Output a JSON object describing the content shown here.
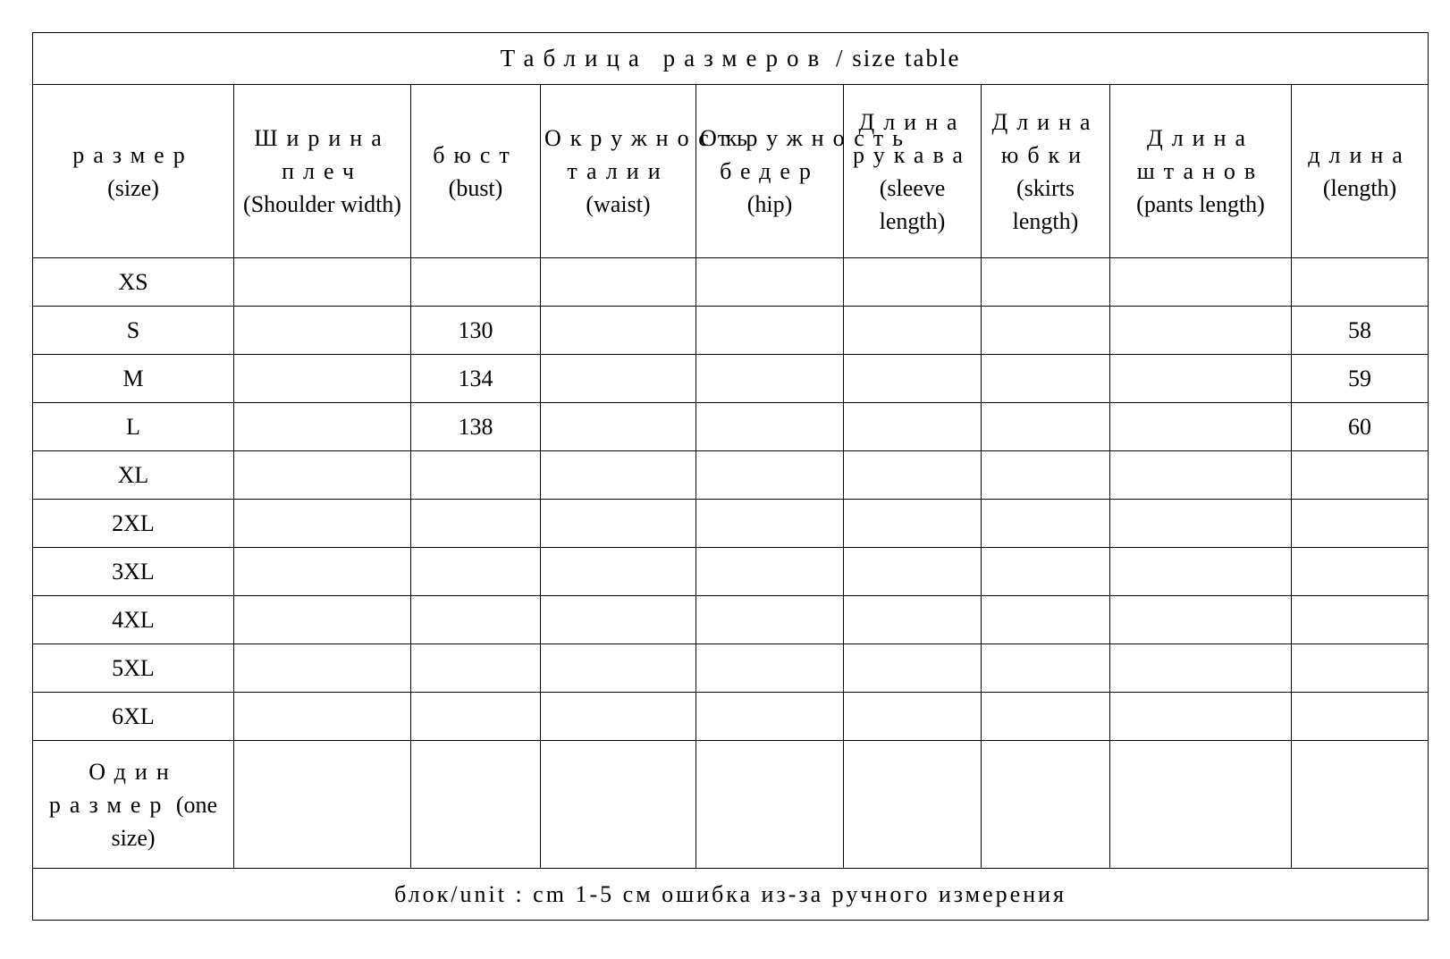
{
  "title": {
    "ru": "Таблица размеров",
    "sep": " / ",
    "en": "size table"
  },
  "columns": [
    {
      "ru": "размер",
      "en": "(size)"
    },
    {
      "ru": "Ширина плеч",
      "en": "(Shoulder width)"
    },
    {
      "ru": "бюст",
      "en": "(bust)"
    },
    {
      "ru": "Окружность талии",
      "en": "(waist)"
    },
    {
      "ru": "Окружность бедер",
      "en": "(hip)"
    },
    {
      "ru": "Длина рукава",
      "en": "(sleeve length)"
    },
    {
      "ru": "Длина юбки",
      "en": "(skirts length)"
    },
    {
      "ru": "Длина штанов",
      "en": "(pants length)"
    },
    {
      "ru": "длина",
      "en": "(length)"
    }
  ],
  "rows": [
    [
      "XS",
      "",
      "",
      "",
      "",
      "",
      "",
      "",
      ""
    ],
    [
      "S",
      "",
      "130",
      "",
      "",
      "",
      "",
      "",
      "58"
    ],
    [
      "M",
      "",
      "134",
      "",
      "",
      "",
      "",
      "",
      "59"
    ],
    [
      "L",
      "",
      "138",
      "",
      "",
      "",
      "",
      "",
      "60"
    ],
    [
      "XL",
      "",
      "",
      "",
      "",
      "",
      "",
      "",
      ""
    ],
    [
      "2XL",
      "",
      "",
      "",
      "",
      "",
      "",
      "",
      ""
    ],
    [
      "3XL",
      "",
      "",
      "",
      "",
      "",
      "",
      "",
      ""
    ],
    [
      "4XL",
      "",
      "",
      "",
      "",
      "",
      "",
      "",
      ""
    ],
    [
      "5XL",
      "",
      "",
      "",
      "",
      "",
      "",
      "",
      ""
    ],
    [
      "6XL",
      "",
      "",
      "",
      "",
      "",
      "",
      "",
      ""
    ]
  ],
  "one_size": {
    "ru": "Один размер",
    "en": "(one size)"
  },
  "footer": "блок/unit : cm  1-5 см ошибка из-за ручного измерения"
}
